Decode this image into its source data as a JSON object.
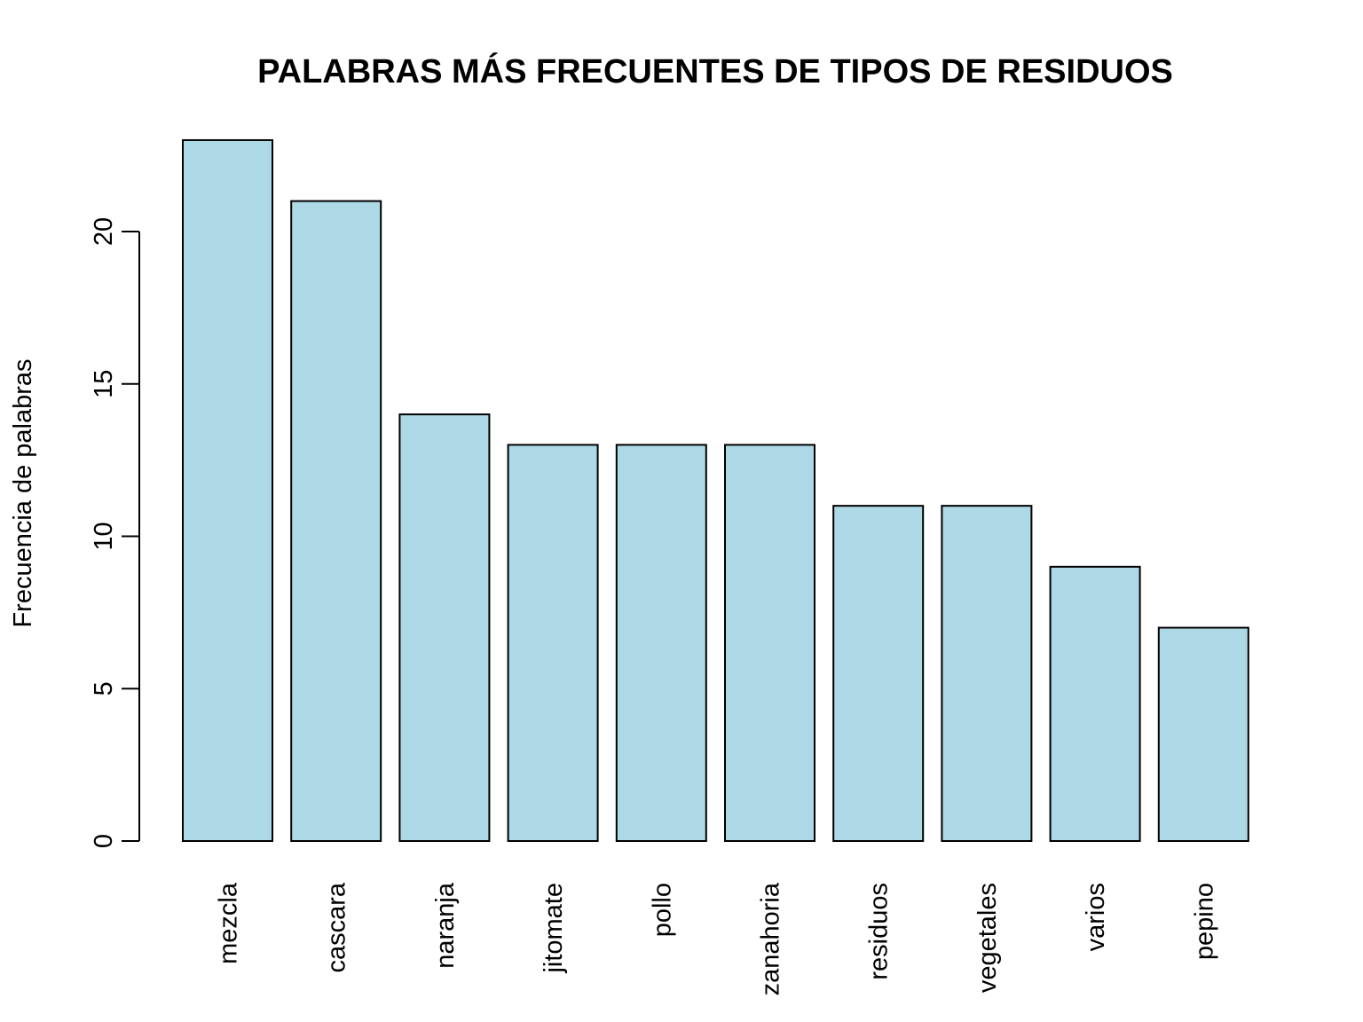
{
  "chart_data": {
    "type": "bar",
    "title": "PALABRAS MÁS FRECUENTES DE TIPOS DE RESIDUOS",
    "xlabel": "",
    "ylabel": "Frecuencia de palabras",
    "categories": [
      "mezcla",
      "cascara",
      "naranja",
      "jitomate",
      "pollo",
      "zanahoria",
      "residuos",
      "vegetales",
      "varios",
      "pepino"
    ],
    "values": [
      23,
      21,
      14,
      13,
      13,
      13,
      11,
      11,
      9,
      7
    ],
    "yticks": [
      "0",
      "5",
      "10",
      "15",
      "20"
    ],
    "ylim": [
      0,
      23
    ],
    "grid": false,
    "bar_color": "#add8e6",
    "border_color": "#000000"
  }
}
